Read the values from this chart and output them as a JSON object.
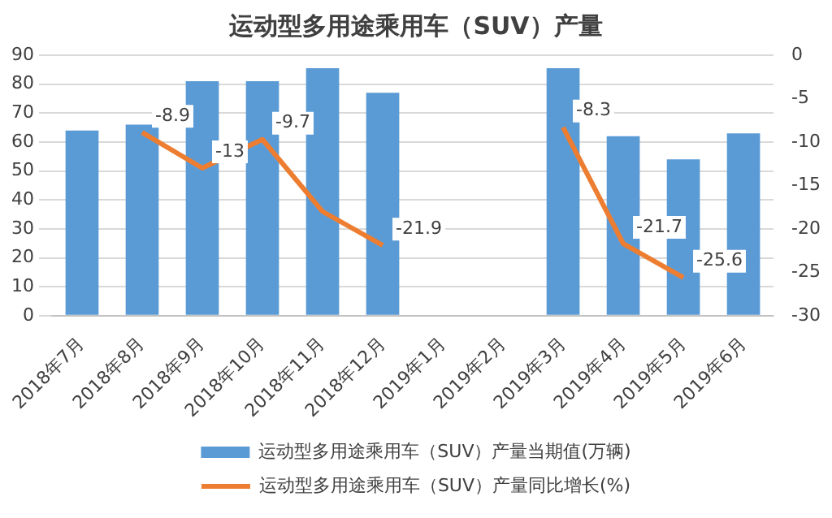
{
  "chart_data": {
    "type": "bar",
    "title": "运动型多用途乘用车（SUV）产量",
    "categories": [
      "2018年7月",
      "2018年8月",
      "2018年9月",
      "2018年10月",
      "2018年11月",
      "2018年12月",
      "2019年1月",
      "2019年2月",
      "2019年3月",
      "2019年4月",
      "2019年5月",
      "2019年6月"
    ],
    "series": [
      {
        "name": "运动型多用途乘用车（SUV）产量当期值(万辆)",
        "color": "#5b9bd5",
        "values": [
          64,
          66,
          81,
          81,
          85.5,
          77,
          null,
          null,
          85.5,
          62,
          54,
          63
        ]
      },
      {
        "name": "运动型多用途乘用车（SUV）产量同比增长(%)",
        "type": "line",
        "axis": "y2",
        "color": "#ed7d31",
        "values": [
          null,
          -8.9,
          -13,
          -9.7,
          -18,
          -21.9,
          null,
          null,
          -8.3,
          -21.7,
          -25.6,
          null
        ],
        "value_labels": [
          null,
          "-8.9",
          "-13",
          "-9.7",
          null,
          "-21.9",
          null,
          null,
          "-8.3",
          "-21.7",
          "-25.6",
          null
        ]
      }
    ],
    "ylim": [
      0,
      90
    ],
    "yticks": [
      0,
      10,
      20,
      30,
      40,
      50,
      60,
      70,
      80,
      90
    ],
    "y2lim": [
      -30,
      0
    ],
    "y2ticks": [
      -30,
      -25,
      -20,
      -15,
      -10,
      -5,
      0
    ],
    "grid": "y",
    "legend": "bottom",
    "marker": "none"
  }
}
